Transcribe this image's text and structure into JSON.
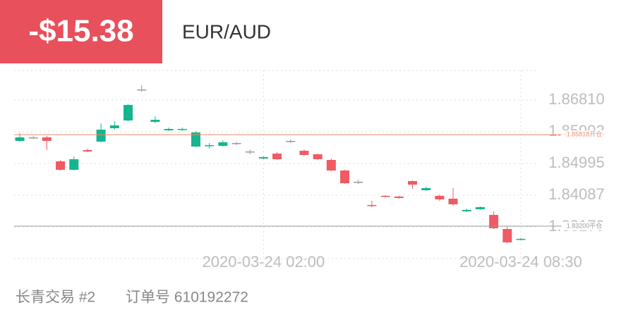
{
  "header": {
    "pnl": "-$15.38",
    "symbol": "EUR/AUD"
  },
  "chart_data": {
    "type": "candlestick",
    "categories": [
      null,
      null,
      null,
      null,
      null,
      null,
      null,
      null,
      null,
      null,
      null,
      null,
      null,
      null,
      null,
      null,
      null,
      null,
      "2020-03-24 02:00",
      null,
      null,
      null,
      null,
      null,
      null,
      null,
      null,
      null,
      null,
      null,
      null,
      null,
      null,
      null,
      null,
      null,
      null,
      "2020-03-24 08:30"
    ],
    "open": [
      1.8564,
      1.85741,
      1.85741,
      1.85055,
      1.84813,
      1.85378,
      1.8562,
      1.86003,
      1.86225,
      1.87113,
      1.86185,
      1.85943,
      1.85963,
      1.85479,
      1.85499,
      1.85499,
      1.8558,
      1.85338,
      1.85136,
      1.85277,
      1.8564,
      1.85358,
      1.85257,
      1.85096,
      1.84793,
      1.8447,
      1.83805,
      1.84067,
      1.84047,
      1.8449,
      1.84228,
      1.84067,
      1.83986,
      1.83623,
      1.83684,
      1.83522,
      1.83119,
      1.82816
    ],
    "high": [
      1.85862,
      1.85781,
      1.85781,
      1.85096,
      1.85196,
      1.85418,
      1.86144,
      1.86205,
      1.86689,
      1.87234,
      1.86346,
      1.86023,
      1.86023,
      1.85923,
      1.8558,
      1.8566,
      1.8562,
      1.85398,
      1.85196,
      1.85317,
      1.85681,
      1.85398,
      1.85277,
      1.85136,
      1.84813,
      1.84531,
      1.83926,
      1.84087,
      1.84067,
      1.84511,
      1.84329,
      1.84107,
      1.84289,
      1.83704,
      1.83765,
      1.83623,
      1.83179,
      1.82857
    ],
    "low": [
      1.8562,
      1.85701,
      1.85378,
      1.84793,
      1.84793,
      1.85317,
      1.856,
      1.85963,
      1.86205,
      1.87052,
      1.86144,
      1.85923,
      1.85923,
      1.85459,
      1.85418,
      1.85479,
      1.85519,
      1.85257,
      1.85116,
      1.85096,
      1.8558,
      1.85217,
      1.85096,
      1.84773,
      1.8441,
      1.8441,
      1.83744,
      1.84027,
      1.83986,
      1.84269,
      1.84208,
      1.83926,
      1.83785,
      1.83603,
      1.83664,
      1.83119,
      1.82715,
      1.82796
    ],
    "close": [
      1.85741,
      1.85741,
      1.8564,
      1.84813,
      1.85116,
      1.85338,
      1.85963,
      1.86084,
      1.86669,
      1.87113,
      1.86245,
      1.85983,
      1.85983,
      1.85882,
      1.85519,
      1.856,
      1.8558,
      1.85338,
      1.85176,
      1.85116,
      1.8564,
      1.85237,
      1.85116,
      1.84793,
      1.8443,
      1.8447,
      1.83785,
      1.84047,
      1.84006,
      1.8439,
      1.84289,
      1.83966,
      1.83825,
      1.83664,
      1.83744,
      1.83139,
      1.82736,
      1.82836
    ],
    "up_color": "#15b58e",
    "down_color": "#ef5a63",
    "flat_color": "#999999",
    "ylim": [
      1.82272,
      1.87657
    ],
    "yticks": [
      {
        "value": 1.8681,
        "label": "1.86810"
      },
      1.85902,
      1.84995,
      1.84087,
      1.83179
    ],
    "grid": true,
    "reference_lines": [
      {
        "value": 1.85818,
        "label": "-1.85818开仓-",
        "color": "#f08a6a"
      },
      {
        "value": 1.832,
        "label": "1.83200平仓",
        "color": "#9a9a9a"
      }
    ]
  },
  "footer": {
    "account": "长青交易 #2",
    "order": "订单号 610192272"
  }
}
